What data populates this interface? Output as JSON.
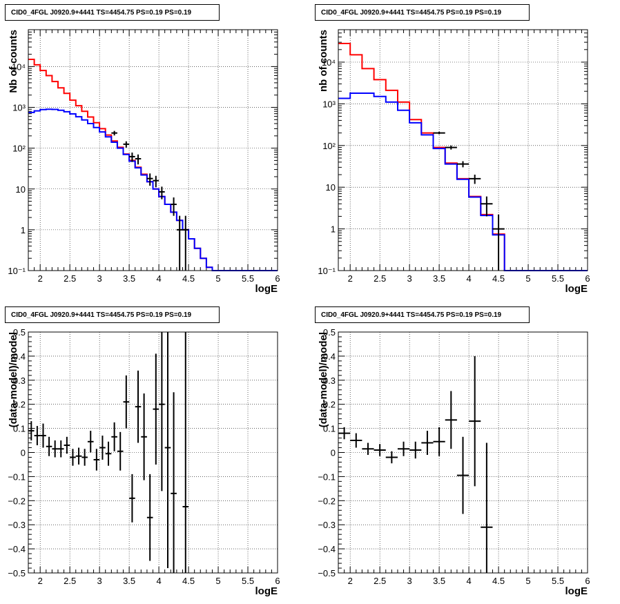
{
  "chart_data": [
    {
      "type": "line",
      "title": "CID0_4FGL J0920.9+4441 TS=4454.75 PS=0.19 PS=0.19",
      "xlabel": "logE",
      "ylabel": "Nb of counts",
      "log_y": true,
      "xlim": [
        1.8,
        6
      ],
      "ylim": [
        0.1,
        80000
      ],
      "xticks": [
        "2",
        "2.5",
        "3",
        "3.5",
        "4",
        "4.5",
        "5",
        "5.5",
        "6"
      ],
      "yticks": [
        {
          "v": 0.1,
          "label": "10⁻¹"
        },
        {
          "v": 1,
          "label": "1"
        },
        {
          "v": 10,
          "label": "10"
        },
        {
          "v": 100,
          "label": "10²"
        },
        {
          "v": 1000,
          "label": "10³"
        },
        {
          "v": 10000,
          "label": "10⁴"
        }
      ],
      "grid": true,
      "bin_edges": [
        1.8,
        1.9,
        2.0,
        2.1,
        2.2,
        2.3,
        2.4,
        2.5,
        2.6,
        2.7,
        2.8,
        2.9,
        3.0,
        3.1,
        3.2,
        3.3,
        3.4,
        3.5,
        3.6,
        3.7,
        3.8,
        3.9,
        4.0,
        4.1,
        4.2,
        4.3,
        4.4,
        4.5,
        4.6,
        4.7,
        4.8,
        4.9,
        5.0,
        5.1,
        5.2,
        5.3,
        5.4,
        5.5,
        5.6,
        5.7,
        5.8,
        5.9,
        6.0
      ],
      "series": [
        {
          "color": "#ff0000",
          "values": [
            15000,
            11000,
            8000,
            6000,
            4300,
            3000,
            2200,
            1500,
            1100,
            800,
            580,
            420,
            300,
            210,
            150,
            105,
            72,
            50,
            34,
            23,
            15,
            10,
            6.5,
            4.2,
            2.7,
            1.7,
            1.0,
            0.6,
            0.35,
            0.2,
            0.12,
            0.1,
            0.1,
            0.1,
            0.1,
            0.1,
            0.1,
            0.1,
            0.1,
            0.1,
            0.1,
            0.1
          ]
        },
        {
          "color": "#0000ff",
          "values": [
            750,
            820,
            880,
            900,
            890,
            850,
            780,
            690,
            590,
            490,
            400,
            320,
            250,
            190,
            140,
            100,
            70,
            48,
            33,
            22,
            15,
            10,
            6.5,
            4.2,
            2.7,
            1.7,
            1.0,
            0.6,
            0.35,
            0.2,
            0.12,
            0.1,
            0.1,
            0.1,
            0.1,
            0.1,
            0.1,
            0.1,
            0.1,
            0.1,
            0.1,
            0.1
          ]
        }
      ],
      "points": [
        {
          "x": 3.25,
          "y": 235,
          "lo": 205,
          "hi": 265
        },
        {
          "x": 3.45,
          "y": 125,
          "lo": 103,
          "hi": 147
        },
        {
          "x": 3.55,
          "y": 62,
          "lo": 46,
          "hi": 78
        },
        {
          "x": 3.65,
          "y": 55,
          "lo": 40,
          "hi": 70
        },
        {
          "x": 3.85,
          "y": 18,
          "lo": 12,
          "hi": 24
        },
        {
          "x": 3.95,
          "y": 16,
          "lo": 11,
          "hi": 21
        },
        {
          "x": 4.05,
          "y": 8.5,
          "lo": 5.6,
          "hi": 11.4
        },
        {
          "x": 4.25,
          "y": 4.2,
          "lo": 2.2,
          "hi": 6.2
        },
        {
          "x": 4.35,
          "y": 1.0,
          "lo": 0.1,
          "hi": 2.2
        },
        {
          "x": 4.45,
          "y": 1.0,
          "lo": 0.1,
          "hi": 2.2
        }
      ]
    },
    {
      "type": "line",
      "title": "CID0_4FGL J0920.9+4441 TS=4454.75 PS=0.19 PS=0.19",
      "xlabel": "logE",
      "ylabel": "nb of counts",
      "log_y": true,
      "xlim": [
        1.8,
        6
      ],
      "ylim": [
        0.1,
        60000
      ],
      "xticks": [
        "2",
        "2.5",
        "3",
        "3.5",
        "4",
        "4.5",
        "5",
        "5.5",
        "6"
      ],
      "yticks": [
        {
          "v": 0.1,
          "label": "10⁻¹"
        },
        {
          "v": 1,
          "label": "1"
        },
        {
          "v": 10,
          "label": "10"
        },
        {
          "v": 100,
          "label": "10²"
        },
        {
          "v": 1000,
          "label": "10³"
        },
        {
          "v": 10000,
          "label": "10⁴"
        }
      ],
      "grid": true,
      "bin_edges": [
        1.8,
        2.0,
        2.2,
        2.4,
        2.6,
        2.8,
        3.0,
        3.2,
        3.4,
        3.6,
        3.8,
        4.0,
        4.2,
        4.4,
        4.6,
        4.8,
        5.0,
        5.2,
        5.4,
        5.6,
        5.8,
        6.0
      ],
      "series": [
        {
          "color": "#ff0000",
          "values": [
            28000,
            15000,
            7000,
            3800,
            2100,
            1100,
            420,
            200,
            90,
            38,
            16,
            6,
            2.2,
            0.75,
            0.1,
            0.1,
            0.1,
            0.1,
            0.1,
            0.1,
            0.1
          ]
        },
        {
          "color": "#0000ff",
          "values": [
            1350,
            1800,
            1800,
            1500,
            1100,
            700,
            350,
            180,
            85,
            36,
            15.5,
            5.8,
            2.1,
            0.72,
            0.1,
            0.1,
            0.1,
            0.1,
            0.1,
            0.1,
            0.1
          ]
        }
      ],
      "points": [
        {
          "x": 3.5,
          "y": 200,
          "lo": 186,
          "hi": 214
        },
        {
          "x": 3.7,
          "y": 90,
          "lo": 80,
          "hi": 100
        },
        {
          "x": 3.9,
          "y": 36,
          "lo": 30,
          "hi": 42
        },
        {
          "x": 4.1,
          "y": 16,
          "lo": 12,
          "hi": 20
        },
        {
          "x": 4.3,
          "y": 4.0,
          "lo": 2.0,
          "hi": 6.0
        },
        {
          "x": 4.5,
          "y": 1.0,
          "lo": 0.1,
          "hi": 2.2
        }
      ]
    },
    {
      "type": "scatter",
      "title": "CID0_4FGL J0920.9+4441 TS=4454.75 PS=0.19 PS=0.19",
      "xlabel": "logE",
      "ylabel": "(data-model)/model",
      "log_y": false,
      "xlim": [
        1.8,
        6
      ],
      "ylim": [
        -0.5,
        0.5
      ],
      "xticks": [
        "2",
        "2.5",
        "3",
        "3.5",
        "4",
        "4.5",
        "5",
        "5.5",
        "6"
      ],
      "yticks": [
        {
          "v": -0.5,
          "label": "−0.5"
        },
        {
          "v": -0.4,
          "label": "−0.4"
        },
        {
          "v": -0.3,
          "label": "−0.3"
        },
        {
          "v": -0.2,
          "label": "−0.2"
        },
        {
          "v": -0.1,
          "label": "−0.1"
        },
        {
          "v": 0,
          "label": "0"
        },
        {
          "v": 0.1,
          "label": "0.1"
        },
        {
          "v": 0.2,
          "label": "0.2"
        },
        {
          "v": 0.3,
          "label": "0.3"
        },
        {
          "v": 0.4,
          "label": "0.4"
        },
        {
          "v": 0.5,
          "label": "0.5"
        }
      ],
      "grid": true,
      "halfwidth": 0.05,
      "points": [
        {
          "x": 1.85,
          "y": 0.09,
          "e": 0.04
        },
        {
          "x": 1.95,
          "y": 0.07,
          "e": 0.04
        },
        {
          "x": 2.05,
          "y": 0.07,
          "e": 0.05
        },
        {
          "x": 2.15,
          "y": 0.025,
          "e": 0.04
        },
        {
          "x": 2.25,
          "y": 0.015,
          "e": 0.035
        },
        {
          "x": 2.35,
          "y": 0.015,
          "e": 0.035
        },
        {
          "x": 2.45,
          "y": 0.03,
          "e": 0.035
        },
        {
          "x": 2.55,
          "y": -0.02,
          "e": 0.035
        },
        {
          "x": 2.65,
          "y": -0.015,
          "e": 0.035
        },
        {
          "x": 2.75,
          "y": -0.02,
          "e": 0.035
        },
        {
          "x": 2.85,
          "y": 0.045,
          "e": 0.045
        },
        {
          "x": 2.95,
          "y": -0.03,
          "e": 0.045
        },
        {
          "x": 3.05,
          "y": 0.02,
          "e": 0.05
        },
        {
          "x": 3.15,
          "y": -0.005,
          "e": 0.05
        },
        {
          "x": 3.25,
          "y": 0.065,
          "e": 0.06
        },
        {
          "x": 3.35,
          "y": 0.005,
          "e": 0.08
        },
        {
          "x": 3.45,
          "y": 0.21,
          "e": 0.11
        },
        {
          "x": 3.55,
          "y": -0.19,
          "e": 0.1
        },
        {
          "x": 3.65,
          "y": 0.19,
          "e": 0.15
        },
        {
          "x": 3.75,
          "y": 0.065,
          "e": 0.18
        },
        {
          "x": 3.85,
          "y": -0.27,
          "e": 0.18
        },
        {
          "x": 3.95,
          "y": 0.18,
          "e": 0.23
        },
        {
          "x": 4.05,
          "y": 0.2,
          "e": 0.36
        },
        {
          "x": 4.15,
          "y": 0.02,
          "e": 0.5
        },
        {
          "x": 4.25,
          "y": -0.17,
          "e": 0.42
        },
        {
          "x": 4.45,
          "y": -0.225,
          "e": 1.0
        }
      ]
    },
    {
      "type": "scatter",
      "title": "CID0_4FGL J0920.9+4441 TS=4454.75 PS=0.19 PS=0.19",
      "xlabel": "logE",
      "ylabel": "(data-model)/model",
      "log_y": false,
      "xlim": [
        1.8,
        6
      ],
      "ylim": [
        -0.5,
        0.5
      ],
      "xticks": [
        "2",
        "2.5",
        "3",
        "3.5",
        "4",
        "4.5",
        "5",
        "5.5",
        "6"
      ],
      "yticks": [
        {
          "v": -0.5,
          "label": "−0.5"
        },
        {
          "v": -0.4,
          "label": "−0.4"
        },
        {
          "v": -0.3,
          "label": "−0.3"
        },
        {
          "v": -0.2,
          "label": "−0.2"
        },
        {
          "v": -0.1,
          "label": "−0.1"
        },
        {
          "v": 0,
          "label": "0"
        },
        {
          "v": 0.1,
          "label": "0.1"
        },
        {
          "v": 0.2,
          "label": "0.2"
        },
        {
          "v": 0.3,
          "label": "0.3"
        },
        {
          "v": 0.4,
          "label": "0.4"
        },
        {
          "v": 0.5,
          "label": "0.5"
        }
      ],
      "grid": true,
      "halfwidth": 0.1,
      "points": [
        {
          "x": 1.9,
          "y": 0.08,
          "e": 0.025
        },
        {
          "x": 2.1,
          "y": 0.05,
          "e": 0.03
        },
        {
          "x": 2.3,
          "y": 0.015,
          "e": 0.025
        },
        {
          "x": 2.5,
          "y": 0.01,
          "e": 0.025
        },
        {
          "x": 2.7,
          "y": -0.02,
          "e": 0.025
        },
        {
          "x": 2.9,
          "y": 0.015,
          "e": 0.03
        },
        {
          "x": 3.1,
          "y": 0.01,
          "e": 0.035
        },
        {
          "x": 3.3,
          "y": 0.04,
          "e": 0.05
        },
        {
          "x": 3.5,
          "y": 0.045,
          "e": 0.06
        },
        {
          "x": 3.7,
          "y": 0.135,
          "e": 0.12
        },
        {
          "x": 3.9,
          "y": -0.095,
          "e": 0.16
        },
        {
          "x": 4.1,
          "y": 0.13,
          "e": 0.27
        },
        {
          "x": 4.3,
          "y": -0.31,
          "e": 0.35
        }
      ]
    }
  ]
}
